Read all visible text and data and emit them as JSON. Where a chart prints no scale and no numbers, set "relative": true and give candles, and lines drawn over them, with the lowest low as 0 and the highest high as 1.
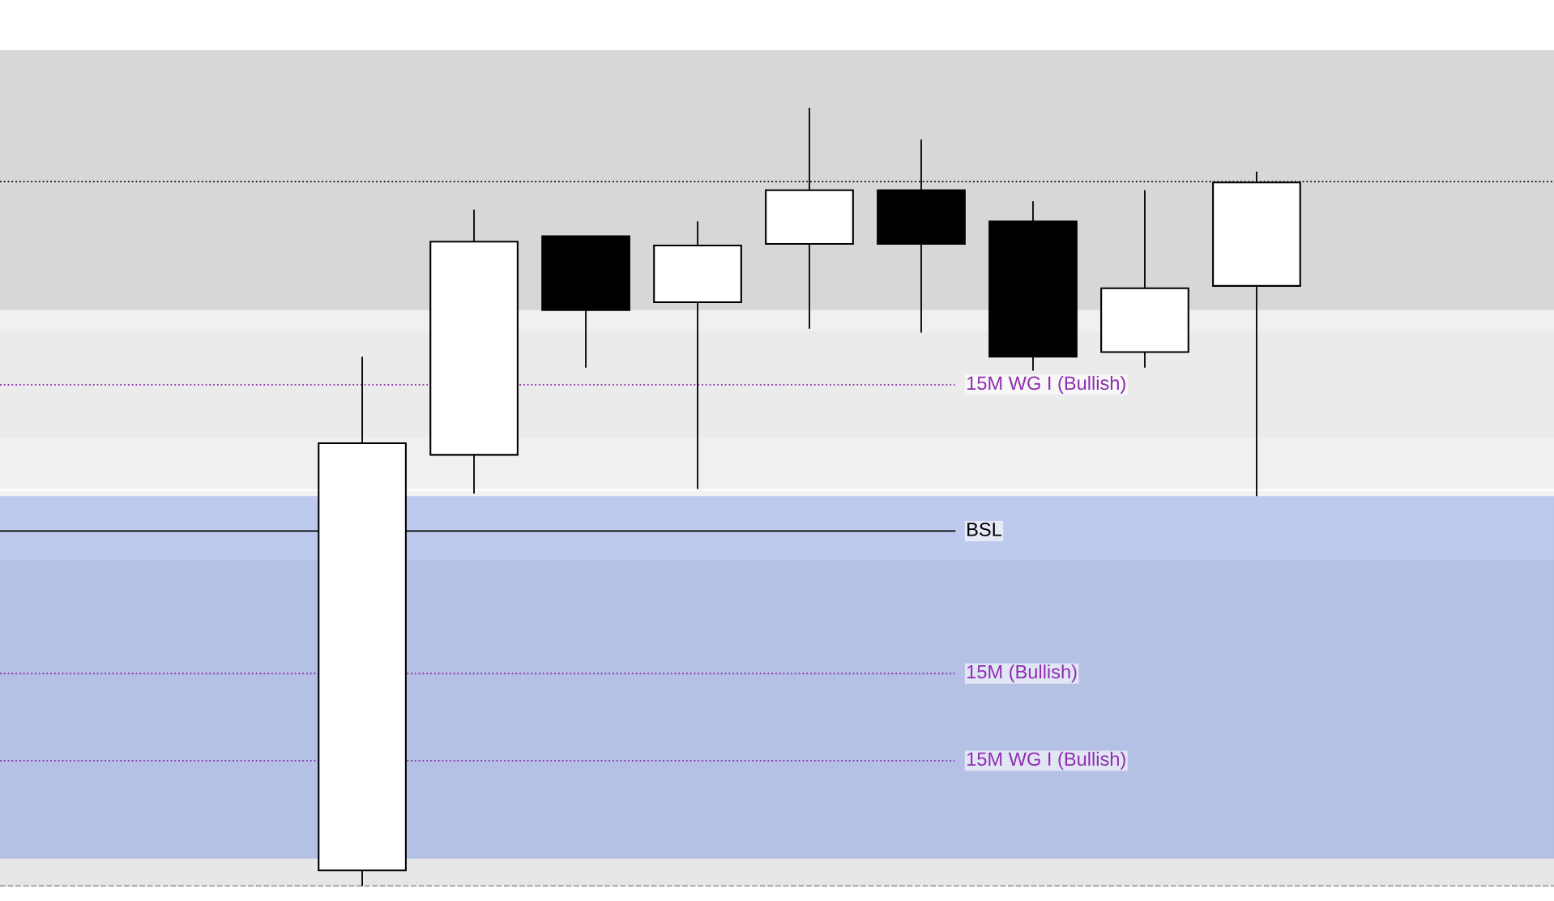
{
  "chart_data": {
    "type": "candlestick",
    "relative": true,
    "categories": [
      null,
      null,
      null,
      null,
      null,
      null,
      null,
      null,
      null
    ],
    "ohlc": [
      [
        0.02,
        0.68,
        0.0,
        0.569
      ],
      [
        0.554,
        0.869,
        0.504,
        0.828
      ],
      [
        0.835,
        0.835,
        0.666,
        0.74
      ],
      [
        0.75,
        0.854,
        0.51,
        0.823
      ],
      [
        0.825,
        1.0,
        0.716,
        0.894
      ],
      [
        0.894,
        0.959,
        0.711,
        0.825
      ],
      [
        0.854,
        0.88,
        0.662,
        0.68
      ],
      [
        0.686,
        0.894,
        0.666,
        0.768
      ],
      [
        0.771,
        0.918,
        0.501,
        0.904
      ]
    ],
    "bands": [
      {
        "axis": "y",
        "from": 0.74,
        "to": 1.074,
        "color": "#b0b0b0"
      },
      {
        "axis": "y",
        "from": 0.51,
        "to": 0.74,
        "color": "#e1e2e4"
      },
      {
        "axis": "y",
        "from": 0.576,
        "to": 0.713,
        "color": "#e6e6e6"
      },
      {
        "axis": "y",
        "from": 0.035,
        "to": 0.508,
        "color": "#e6e6e6"
      },
      {
        "axis": "y",
        "from": 0.0,
        "to": 0.419,
        "color": "#d0d0d0"
      },
      {
        "axis": "y",
        "from": 0.035,
        "to": 0.501,
        "color": "#8aa0ea"
      }
    ],
    "ref_lines": [
      {
        "axis": "y",
        "value": 0.905,
        "color": "#000000",
        "line_style": "dotted"
      },
      {
        "axis": "y",
        "value": 0.644,
        "label": "15M WG I (Bullish)",
        "color": "#8e2fb0",
        "line_style": "dotted"
      },
      {
        "axis": "y",
        "value": 0.456,
        "label": "BSL",
        "color": "#000000",
        "line_style": "solid"
      },
      {
        "axis": "y",
        "value": 0.273,
        "label": "15M (Bullish)",
        "color": "#8e2fb0",
        "line_style": "dotted"
      },
      {
        "axis": "y",
        "value": 0.161,
        "label": "15M WG I (Bullish)",
        "color": "#8e2fb0",
        "line_style": "dotted"
      },
      {
        "axis": "y",
        "value": 0.0,
        "color": "#999999",
        "line_style": "dashed"
      }
    ]
  }
}
